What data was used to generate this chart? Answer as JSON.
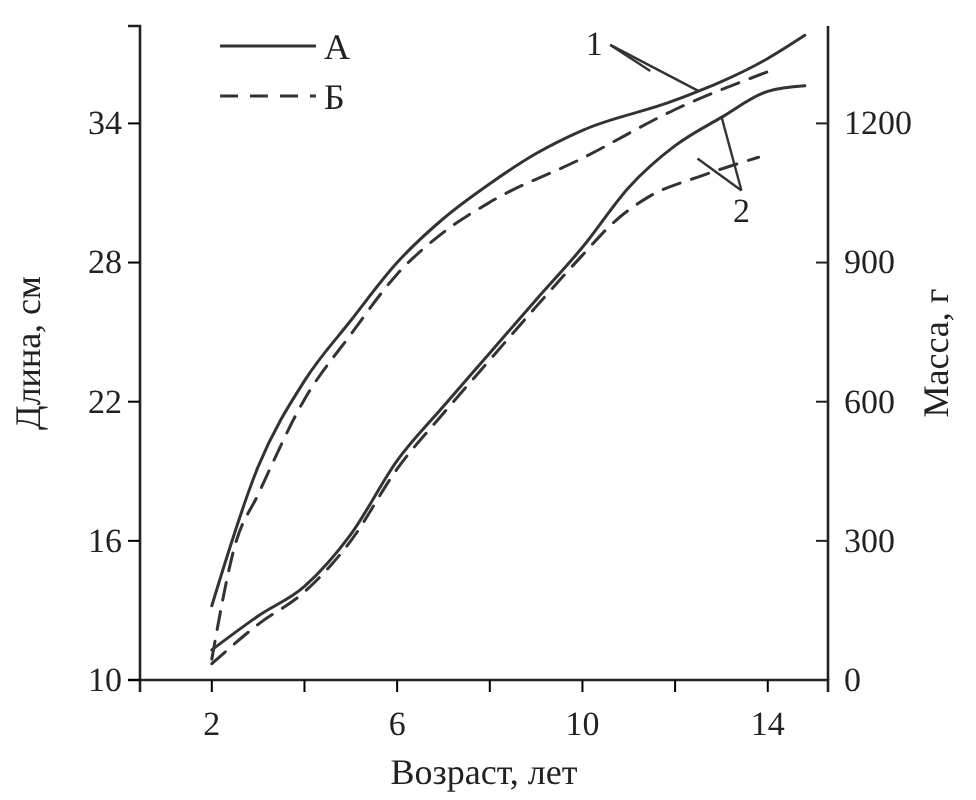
{
  "chart_data": {
    "type": "line",
    "xlabel": "Возраст, лет",
    "ylabel": "Длина, см",
    "y2label": "Масса, г",
    "xlim": [
      0.45,
      15.3
    ],
    "xticks": [
      2,
      {
        "value": 4,
        "label": null
      },
      6,
      {
        "value": 8,
        "label": null
      },
      10,
      {
        "value": 12,
        "label": null
      },
      14
    ],
    "ylim": [
      10,
      38.2
    ],
    "yticks": [
      10,
      16,
      22,
      28,
      34
    ],
    "y2lim": [
      0,
      1410
    ],
    "y2ticks": [
      0,
      300,
      600,
      900,
      1200
    ],
    "legend": "top left",
    "grid": false,
    "marker": "none",
    "annotations": [
      {
        "text": "1",
        "x": 12.5,
        "y": 35.4
      },
      {
        "text": "2",
        "x": 13,
        "y": 34.3
      }
    ],
    "series": [
      {
        "name": "А",
        "color": "#333333",
        "line_style": "solid",
        "x": [
          2,
          3,
          4,
          5,
          6,
          7,
          8,
          9,
          10,
          12,
          14,
          14.8
        ],
        "values": [
          13.2,
          19.2,
          22.9,
          25.5,
          28.0,
          29.9,
          31.4,
          32.7,
          33.7,
          35.0,
          36.8,
          37.8
        ]
      },
      {
        "name": "Б",
        "color": "#333333",
        "line_style": "dashed",
        "x": [
          2,
          2.5,
          3,
          4,
          5,
          6,
          7,
          8,
          10,
          12,
          14.1
        ],
        "values": [
          10.9,
          15.8,
          18.0,
          22.1,
          24.9,
          27.5,
          29.3,
          30.6,
          32.5,
          34.6,
          36.3
        ]
      },
      {
        "color": "#333333",
        "line_style": "solid",
        "axis": "y2",
        "x": [
          2,
          3,
          4,
          5,
          6,
          7,
          8,
          9,
          10,
          11,
          12,
          13,
          14,
          14.8
        ],
        "values": [
          65,
          138,
          202,
          314,
          473,
          590,
          705,
          820,
          933,
          1062,
          1152,
          1213,
          1269,
          1281
        ]
      },
      {
        "color": "#333333",
        "line_style": "dashed",
        "axis": "y2",
        "x": [
          2,
          3,
          4,
          5,
          6,
          7,
          8,
          9,
          10,
          10.7,
          11.4,
          12.6,
          13.8
        ],
        "values": [
          35,
          120,
          190,
          300,
          455,
          575,
          690,
          805,
          916,
          989,
          1040,
          1088,
          1127
        ]
      }
    ]
  }
}
